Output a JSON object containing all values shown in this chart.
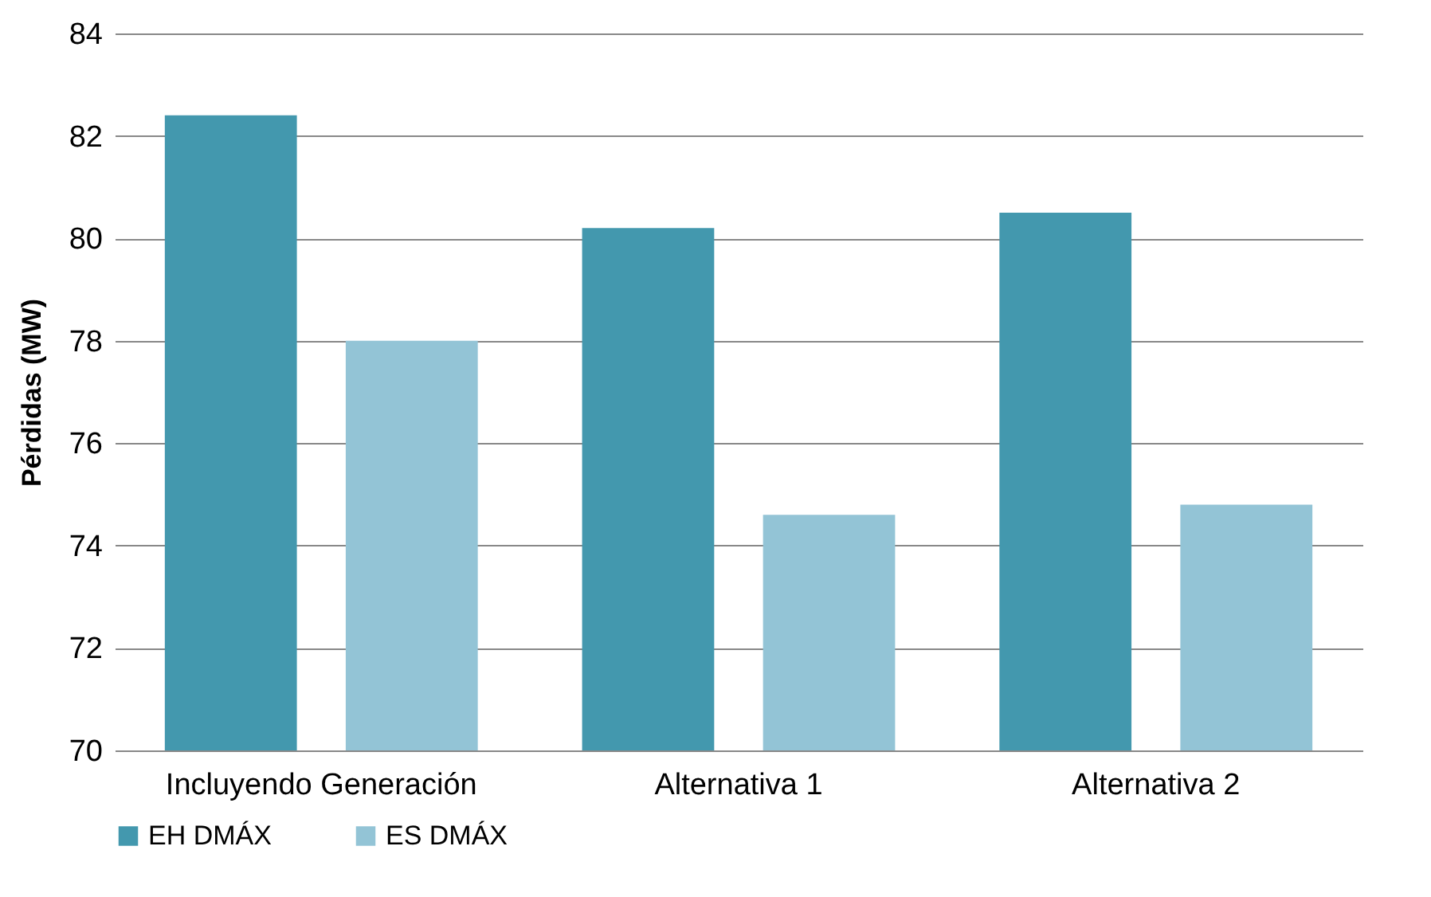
{
  "chart_data": {
    "type": "bar",
    "ylabel": "Pérdidas (MW)",
    "categories": [
      "Incluyendo Generación",
      "Alternativa 1",
      "Alternativa 2"
    ],
    "series": [
      {
        "name": "EH DMÁX",
        "color": "#4398ae",
        "values": [
          82.4,
          80.2,
          80.5
        ]
      },
      {
        "name": "ES DMÁX",
        "color": "#93c4d6",
        "values": [
          78.0,
          74.6,
          74.8
        ]
      }
    ],
    "ylim": [
      70,
      84
    ],
    "yticks": [
      70,
      72,
      74,
      76,
      78,
      80,
      82,
      84
    ],
    "grid": "y",
    "legend": "bottom"
  }
}
